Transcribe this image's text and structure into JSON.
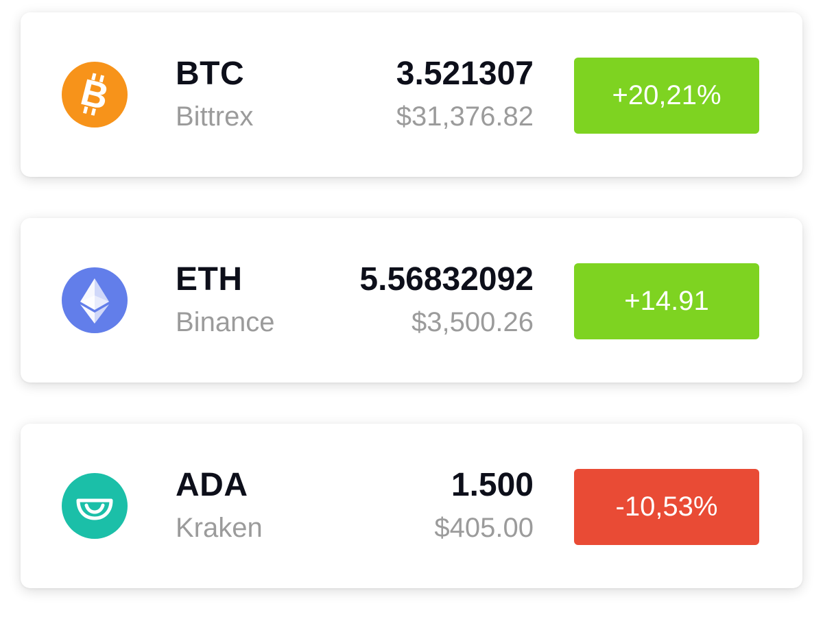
{
  "assets": [
    {
      "symbol": "BTC",
      "exchange": "Bittrex",
      "amount": "3.521307",
      "usd_value": "$31,376.82",
      "change": "+20,21%",
      "trend": "up",
      "icon": "bitcoin-icon",
      "icon_color": "#f7931a",
      "badge_color": "#7ed321"
    },
    {
      "symbol": "ETH",
      "exchange": "Binance",
      "amount": "5.56832092",
      "usd_value": "$3,500.26",
      "change": "+14.91",
      "trend": "up",
      "icon": "ethereum-icon",
      "icon_color": "#627eea",
      "badge_color": "#7ed321"
    },
    {
      "symbol": "ADA",
      "exchange": "Kraken",
      "amount": "1.500",
      "usd_value": "$405.00",
      "change": "-10,53%",
      "trend": "down",
      "icon": "cardano-icon",
      "icon_color": "#1bbfa8",
      "badge_color": "#e94b35"
    }
  ]
}
